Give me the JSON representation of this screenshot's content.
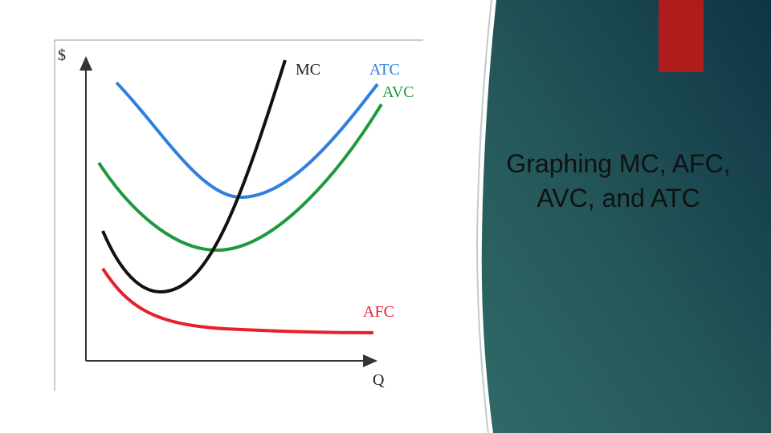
{
  "title": "Graphing MC, AFC, AVC, and ATC",
  "graph": {
    "y_axis_label": "$",
    "x_axis_label": "Q",
    "curves": [
      {
        "label": "MC"
      },
      {
        "label": "ATC"
      },
      {
        "label": "AVC"
      },
      {
        "label": "AFC"
      }
    ]
  }
}
